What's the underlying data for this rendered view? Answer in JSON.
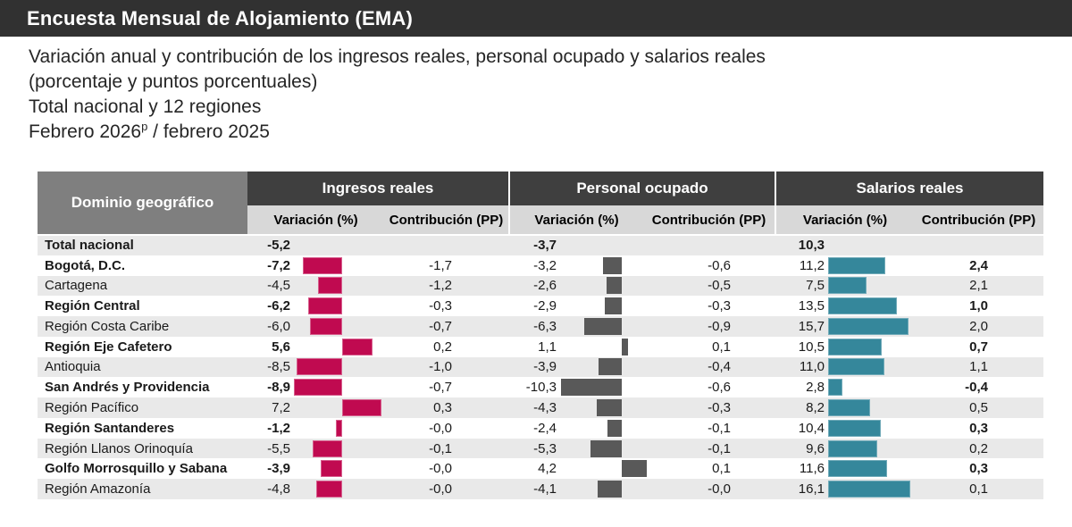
{
  "header": {
    "title": "Encuesta Mensual de Alojamiento (EMA)"
  },
  "subtitle": {
    "line1": "Variación anual y contribución de los ingresos reales, personal ocupado y salarios reales",
    "line2": "(porcentaje y puntos porcentuales)",
    "line3": "Total nacional y 12 regiones",
    "line4_prefix": "Febrero 2026",
    "line4_sup": "p",
    "line4_suffix": " / febrero 2025"
  },
  "colors": {
    "ingresos_bar": "#c00a50",
    "personal_bar": "#595959",
    "salarios_bar": "#35879b",
    "header_dark": "#3f3f3f",
    "domain_header_gray": "#7f7f7f",
    "subheader_gray": "#d8d8d8",
    "row_stripe": "#e9e9e9",
    "titlebar": "#313131"
  },
  "table": {
    "domain_header": "Dominio geográfico",
    "groups": [
      {
        "label": "Ingresos reales",
        "col_var": "Variación (%)",
        "col_con": "Contribución (PP)"
      },
      {
        "label": "Personal ocupado",
        "col_var": "Variación (%)",
        "col_con": "Contribución (PP)"
      },
      {
        "label": "Salarios reales",
        "col_var": "Variación (%)",
        "col_con": "Contribución (PP)"
      }
    ],
    "rows": [
      {
        "name": "Total nacional",
        "is_total": true,
        "ing_var": "-5,2",
        "ing_con": "",
        "per_var": "-3,7",
        "per_con": "",
        "sal_var": "10,3",
        "sal_con": ""
      },
      {
        "name": "Bogotá, D.C.",
        "ing_var": "-7,2",
        "ing_con": "-1,7",
        "per_var": "-3,2",
        "per_con": "-0,6",
        "sal_var": "11,2",
        "sal_con": "2,4"
      },
      {
        "name": "Cartagena",
        "ing_var": "-4,5",
        "ing_con": "-1,2",
        "per_var": "-2,6",
        "per_con": "-0,5",
        "sal_var": "7,5",
        "sal_con": "2,1"
      },
      {
        "name": "Región Central",
        "ing_var": "-6,2",
        "ing_con": "-0,3",
        "per_var": "-2,9",
        "per_con": "-0,3",
        "sal_var": "13,5",
        "sal_con": "1,0"
      },
      {
        "name": "Región Costa Caribe",
        "ing_var": "-6,0",
        "ing_con": "-0,7",
        "per_var": "-6,3",
        "per_con": "-0,9",
        "sal_var": "15,7",
        "sal_con": "2,0"
      },
      {
        "name": "Región Eje Cafetero",
        "ing_var": "5,6",
        "ing_con": "0,2",
        "per_var": "1,1",
        "per_con": "0,1",
        "sal_var": "10,5",
        "sal_con": "0,7"
      },
      {
        "name": "Antioquia",
        "ing_var": "-8,5",
        "ing_con": "-1,0",
        "per_var": "-3,9",
        "per_con": "-0,4",
        "sal_var": "11,0",
        "sal_con": "1,1"
      },
      {
        "name": "San Andrés y Providencia",
        "ing_var": "-8,9",
        "ing_con": "-0,7",
        "per_var": "-10,3",
        "per_con": "-0,6",
        "sal_var": "2,8",
        "sal_con": "-0,4"
      },
      {
        "name": "Región Pacífico",
        "ing_var": "7,2",
        "ing_con": "0,3",
        "per_var": "-4,3",
        "per_con": "-0,3",
        "sal_var": "8,2",
        "sal_con": "0,5"
      },
      {
        "name": "Región Santanderes",
        "ing_var": "-1,2",
        "ing_con": "-0,0",
        "per_var": "-2,4",
        "per_con": "-0,1",
        "sal_var": "10,4",
        "sal_con": "0,3"
      },
      {
        "name": "Región Llanos Orinoquía",
        "ing_var": "-5,5",
        "ing_con": "-0,1",
        "per_var": "-5,3",
        "per_con": "-0,1",
        "sal_var": "9,6",
        "sal_con": "0,2"
      },
      {
        "name": "Golfo Morrosquillo y Sabana",
        "ing_var": "-3,9",
        "ing_con": "-0,0",
        "per_var": "4,2",
        "per_con": "0,1",
        "sal_var": "11,6",
        "sal_con": "0,3"
      },
      {
        "name": "Región Amazonía",
        "ing_var": "-4,8",
        "ing_con": "-0,0",
        "per_var": "-4,1",
        "per_con": "-0,0",
        "sal_var": "16,1",
        "sal_con": "0,1"
      }
    ]
  },
  "chart_data": {
    "type": "table",
    "title": "Variación anual y contribución de los ingresos reales, personal ocupado y salarios reales (porcentaje y puntos porcentuales), Total nacional y 12 regiones, Febrero 2026p / febrero 2025",
    "columns": [
      "Dominio geográfico",
      "Ingresos reales Variación (%)",
      "Ingresos reales Contribución (PP)",
      "Personal ocupado Variación (%)",
      "Personal ocupado Contribución (PP)",
      "Salarios reales Variación (%)",
      "Salarios reales Contribución (PP)"
    ],
    "bar_columns": [
      "Ingresos reales Variación (%)",
      "Personal ocupado Variación (%)",
      "Salarios reales Variación (%)"
    ],
    "bar_axis_ranges": {
      "ingresos": [
        -8.9,
        7.2
      ],
      "personal": [
        -10.3,
        4.2
      ],
      "salarios": [
        0,
        16.1
      ]
    },
    "rows": [
      [
        "Total nacional",
        -5.2,
        null,
        -3.7,
        null,
        10.3,
        null
      ],
      [
        "Bogotá, D.C.",
        -7.2,
        -1.7,
        -3.2,
        -0.6,
        11.2,
        2.4
      ],
      [
        "Cartagena",
        -4.5,
        -1.2,
        -2.6,
        -0.5,
        7.5,
        2.1
      ],
      [
        "Región Central",
        -6.2,
        -0.3,
        -2.9,
        -0.3,
        13.5,
        1.0
      ],
      [
        "Región Costa Caribe",
        -6.0,
        -0.7,
        -6.3,
        -0.9,
        15.7,
        2.0
      ],
      [
        "Región Eje Cafetero",
        5.6,
        0.2,
        1.1,
        0.1,
        10.5,
        0.7
      ],
      [
        "Antioquia",
        -8.5,
        -1.0,
        -3.9,
        -0.4,
        11.0,
        1.1
      ],
      [
        "San Andrés y Providencia",
        -8.9,
        -0.7,
        -10.3,
        -0.6,
        2.8,
        -0.4
      ],
      [
        "Región Pacífico",
        7.2,
        0.3,
        -4.3,
        -0.3,
        8.2,
        0.5
      ],
      [
        "Región Santanderes",
        -1.2,
        -0.0,
        -2.4,
        -0.1,
        10.4,
        0.3
      ],
      [
        "Región Llanos Orinoquía",
        -5.5,
        -0.1,
        -5.3,
        -0.1,
        9.6,
        0.2
      ],
      [
        "Golfo Morrosquillo y Sabana",
        -3.9,
        -0.0,
        4.2,
        0.1,
        11.6,
        0.3
      ],
      [
        "Región Amazonía",
        -4.8,
        -0.0,
        -4.1,
        -0.0,
        16.1,
        0.1
      ]
    ]
  }
}
